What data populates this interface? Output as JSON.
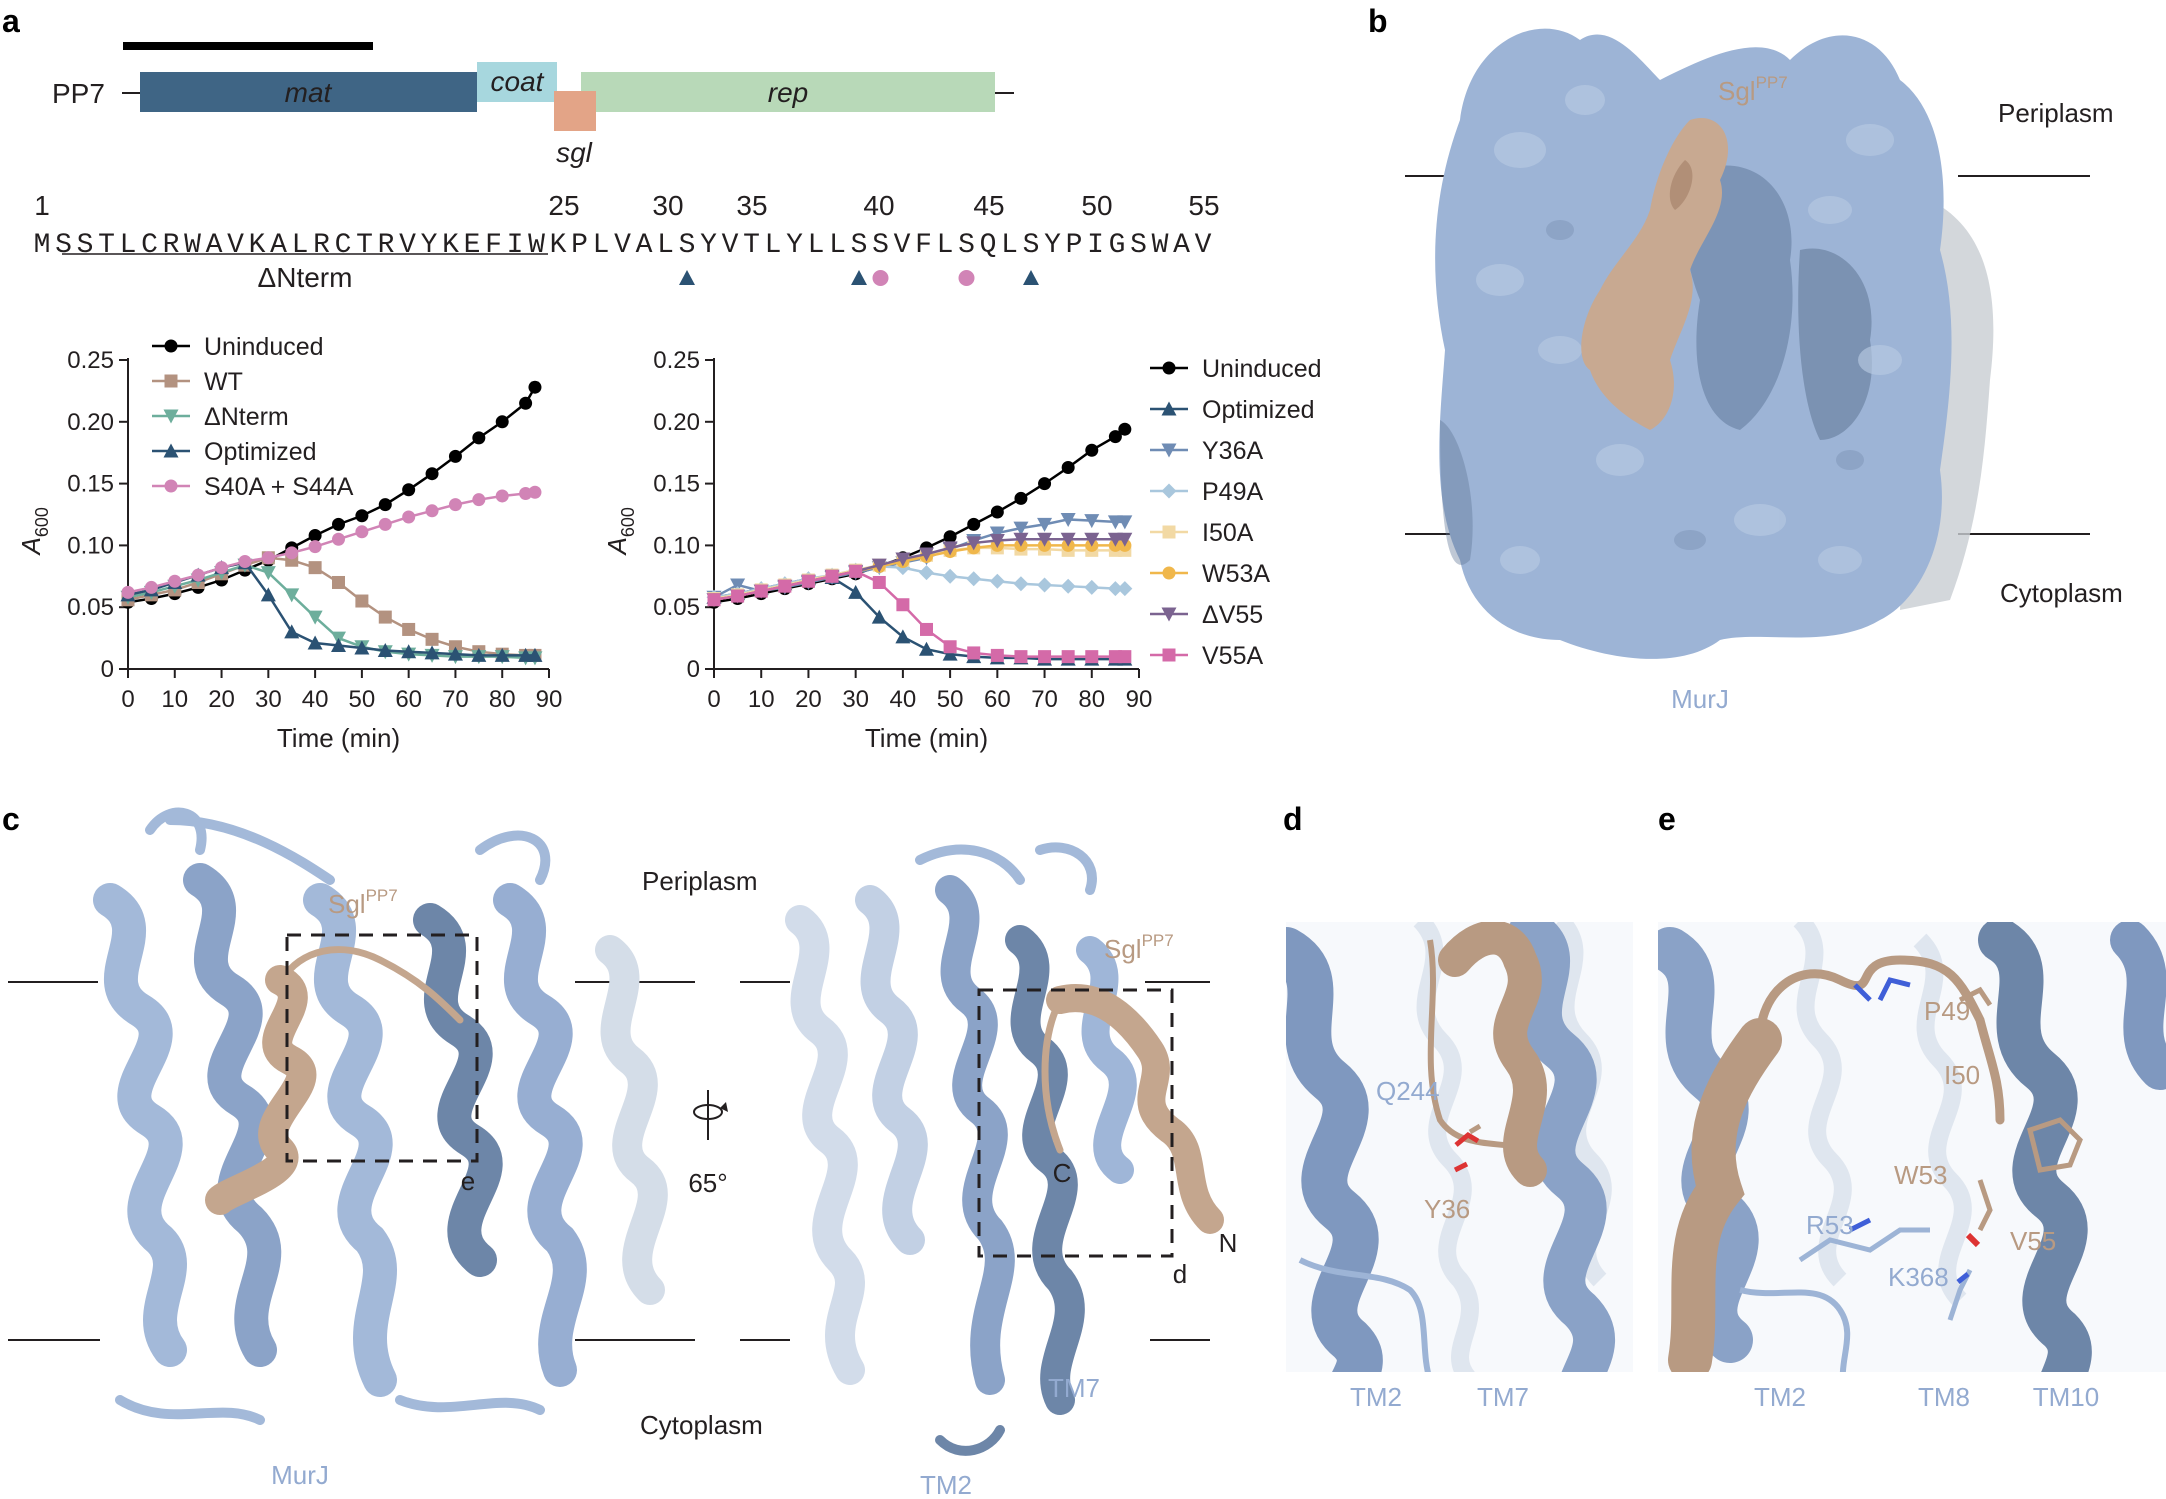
{
  "panels": {
    "a": "a",
    "b": "b",
    "c": "c",
    "d": "d",
    "e": "e"
  },
  "genome": {
    "phage": "PP7",
    "genes": [
      "mat",
      "coat",
      "rep"
    ],
    "sgl": "sgl"
  },
  "sequence": {
    "positions": [
      "1",
      "25",
      "30",
      "35",
      "40",
      "45",
      "50",
      "55"
    ],
    "residues": "MSSTLCRWAVKALRCTRVYKEFIWKPLVALSYVTLYLLSSVFLSQLSYPIGSWAV",
    "tan_residue_numbers": [
      36,
      49,
      50,
      53,
      55
    ],
    "triangle_residue_numbers": [
      31,
      39,
      47
    ],
    "circle_residue_numbers": [
      40,
      44
    ],
    "deletion_label": "ΔNterm"
  },
  "panel_b": {
    "sgl_label": "Sgl",
    "sgl_sup": "PP7",
    "periplasm": "Periplasm",
    "cytoplasm": "Cytoplasm",
    "murj": "MurJ"
  },
  "panel_c": {
    "periplasm": "Periplasm",
    "cytoplasm": "Cytoplasm",
    "murj": "MurJ",
    "sgl_label": "Sgl",
    "sgl_sup": "PP7",
    "box_e": "e",
    "box_d": "d",
    "rotation": "65°",
    "c_term": "C",
    "n_term": "N",
    "tm2": "TM2",
    "tm7": "TM7"
  },
  "panel_d": {
    "q244": "Q244",
    "y36": "Y36",
    "tm2": "TM2",
    "tm7": "TM7"
  },
  "panel_e": {
    "p49": "P49",
    "i50": "I50",
    "w53": "W53",
    "v55": "V55",
    "r53": "R53",
    "k368": "K368",
    "tm2": "TM2",
    "tm8": "TM8",
    "tm10": "TM10"
  },
  "colors": {
    "murj_blue": "#9db4d6",
    "murj_dark": "#5f7695",
    "sgl_tan": "#b89a82",
    "mat": "#3f6585",
    "coat": "#a7d7de",
    "rep": "#b8d9b8",
    "sgl_gene": "#e3a487"
  },
  "chart_data": [
    {
      "type": "line",
      "xlabel": "Time (min)",
      "ylabel": "A600",
      "ylabel_main": "A",
      "ylabel_sub": "600",
      "xlim": [
        0,
        90
      ],
      "ylim": [
        0,
        0.25
      ],
      "xticks": [
        "0",
        "10",
        "20",
        "30",
        "40",
        "50",
        "60",
        "70",
        "80",
        "90"
      ],
      "yticks": [
        "0",
        "0.05",
        "0.10",
        "0.15",
        "0.20",
        "0.25"
      ],
      "legend_position": "top-left",
      "series": [
        {
          "name": "Uninduced",
          "color": "#000000",
          "marker": "circle",
          "x": [
            0,
            5,
            10,
            15,
            20,
            25,
            30,
            35,
            40,
            45,
            50,
            55,
            60,
            65,
            70,
            75,
            80,
            85,
            87
          ],
          "y": [
            0.054,
            0.057,
            0.061,
            0.066,
            0.072,
            0.08,
            0.088,
            0.098,
            0.108,
            0.117,
            0.124,
            0.133,
            0.145,
            0.158,
            0.172,
            0.187,
            0.2,
            0.215,
            0.228
          ]
        },
        {
          "name": "WT",
          "color": "#b39280",
          "marker": "square",
          "x": [
            0,
            5,
            10,
            15,
            20,
            25,
            30,
            35,
            40,
            45,
            50,
            55,
            60,
            65,
            70,
            75,
            80,
            85,
            87
          ],
          "y": [
            0.056,
            0.06,
            0.064,
            0.07,
            0.077,
            0.084,
            0.09,
            0.088,
            0.082,
            0.07,
            0.055,
            0.042,
            0.032,
            0.024,
            0.018,
            0.014,
            0.012,
            0.011,
            0.011
          ]
        },
        {
          "name": "ΔNterm",
          "color": "#6dae9c",
          "marker": "triangle-down",
          "x": [
            0,
            5,
            10,
            15,
            20,
            25,
            30,
            35,
            40,
            45,
            50,
            55,
            60,
            65,
            70,
            75,
            80,
            85,
            87
          ],
          "y": [
            0.058,
            0.062,
            0.067,
            0.072,
            0.078,
            0.084,
            0.078,
            0.06,
            0.042,
            0.025,
            0.018,
            0.014,
            0.012,
            0.011,
            0.01,
            0.01,
            0.01,
            0.009,
            0.009
          ]
        },
        {
          "name": "Optimized",
          "color": "#2b5273",
          "marker": "triangle-up",
          "x": [
            0,
            5,
            10,
            15,
            20,
            25,
            30,
            35,
            40,
            45,
            50,
            55,
            60,
            65,
            70,
            75,
            80,
            85,
            87
          ],
          "y": [
            0.06,
            0.064,
            0.07,
            0.076,
            0.082,
            0.086,
            0.06,
            0.03,
            0.021,
            0.019,
            0.017,
            0.015,
            0.014,
            0.013,
            0.012,
            0.011,
            0.011,
            0.011,
            0.011
          ]
        },
        {
          "name": "S40A + S44A",
          "color": "#d184b6",
          "marker": "circle",
          "x": [
            0,
            5,
            10,
            15,
            20,
            25,
            30,
            35,
            40,
            45,
            50,
            55,
            60,
            65,
            70,
            75,
            80,
            85,
            87
          ],
          "y": [
            0.062,
            0.066,
            0.071,
            0.076,
            0.082,
            0.087,
            0.09,
            0.094,
            0.099,
            0.105,
            0.111,
            0.117,
            0.123,
            0.128,
            0.133,
            0.137,
            0.14,
            0.142,
            0.143
          ]
        }
      ]
    },
    {
      "type": "line",
      "xlabel": "Time (min)",
      "ylabel": "A600",
      "ylabel_main": "A",
      "ylabel_sub": "600",
      "xlim": [
        0,
        90
      ],
      "ylim": [
        0,
        0.25
      ],
      "xticks": [
        "0",
        "10",
        "20",
        "30",
        "40",
        "50",
        "60",
        "70",
        "80",
        "90"
      ],
      "yticks": [
        "0",
        "0.05",
        "0.10",
        "0.15",
        "0.20",
        "0.25"
      ],
      "legend_position": "right",
      "series": [
        {
          "name": "Uninduced",
          "color": "#000000",
          "marker": "circle",
          "x": [
            0,
            5,
            10,
            15,
            20,
            25,
            30,
            35,
            40,
            45,
            50,
            55,
            60,
            65,
            70,
            75,
            80,
            85,
            87
          ],
          "y": [
            0.054,
            0.057,
            0.061,
            0.065,
            0.069,
            0.073,
            0.077,
            0.083,
            0.09,
            0.098,
            0.107,
            0.117,
            0.127,
            0.138,
            0.15,
            0.163,
            0.177,
            0.188,
            0.194
          ]
        },
        {
          "name": "Optimized",
          "color": "#2b5273",
          "marker": "triangle-up",
          "x": [
            0,
            5,
            10,
            15,
            20,
            25,
            30,
            35,
            40,
            45,
            50,
            55,
            60,
            65,
            70,
            75,
            80,
            85,
            87
          ],
          "y": [
            0.058,
            0.061,
            0.065,
            0.069,
            0.073,
            0.074,
            0.062,
            0.042,
            0.026,
            0.016,
            0.012,
            0.01,
            0.009,
            0.009,
            0.008,
            0.008,
            0.008,
            0.008,
            0.008
          ]
        },
        {
          "name": "Y36A",
          "color": "#6f8cb4",
          "marker": "triangle-down",
          "x": [
            0,
            5,
            10,
            15,
            20,
            25,
            30,
            35,
            40,
            45,
            50,
            55,
            60,
            65,
            70,
            75,
            80,
            85,
            87
          ],
          "y": [
            0.058,
            0.068,
            0.063,
            0.066,
            0.07,
            0.074,
            0.078,
            0.082,
            0.086,
            0.09,
            0.097,
            0.104,
            0.11,
            0.114,
            0.117,
            0.121,
            0.12,
            0.119,
            0.119
          ]
        },
        {
          "name": "P49A",
          "color": "#a9c7dd",
          "marker": "diamond",
          "x": [
            0,
            5,
            10,
            15,
            20,
            25,
            30,
            35,
            40,
            45,
            50,
            55,
            60,
            65,
            70,
            75,
            80,
            85,
            87
          ],
          "y": [
            0.058,
            0.061,
            0.065,
            0.069,
            0.073,
            0.076,
            0.08,
            0.083,
            0.082,
            0.078,
            0.075,
            0.073,
            0.071,
            0.069,
            0.068,
            0.067,
            0.066,
            0.065,
            0.065
          ]
        },
        {
          "name": "I50A",
          "color": "#f2d9a4",
          "marker": "square",
          "x": [
            0,
            5,
            10,
            15,
            20,
            25,
            30,
            35,
            40,
            45,
            50,
            55,
            60,
            65,
            70,
            75,
            80,
            85,
            87
          ],
          "y": [
            0.057,
            0.06,
            0.064,
            0.068,
            0.072,
            0.076,
            0.08,
            0.084,
            0.088,
            0.092,
            0.096,
            0.098,
            0.098,
            0.097,
            0.097,
            0.096,
            0.096,
            0.096,
            0.096
          ]
        },
        {
          "name": "W53A",
          "color": "#f0b74b",
          "marker": "circle",
          "x": [
            0,
            5,
            10,
            15,
            20,
            25,
            30,
            35,
            40,
            45,
            50,
            55,
            60,
            65,
            70,
            75,
            80,
            85,
            87
          ],
          "y": [
            0.056,
            0.059,
            0.063,
            0.067,
            0.071,
            0.075,
            0.079,
            0.083,
            0.087,
            0.091,
            0.095,
            0.098,
            0.1,
            0.1,
            0.1,
            0.1,
            0.1,
            0.1,
            0.1
          ]
        },
        {
          "name": "ΔV55",
          "color": "#7b6390",
          "marker": "triangle-down",
          "x": [
            0,
            5,
            10,
            15,
            20,
            25,
            30,
            35,
            40,
            45,
            50,
            55,
            60,
            65,
            70,
            75,
            80,
            85,
            87
          ],
          "y": [
            0.056,
            0.059,
            0.063,
            0.067,
            0.071,
            0.075,
            0.079,
            0.084,
            0.089,
            0.093,
            0.098,
            0.102,
            0.104,
            0.105,
            0.105,
            0.105,
            0.105,
            0.105,
            0.105
          ]
        },
        {
          "name": "V55A",
          "color": "#d46aa8",
          "marker": "square",
          "x": [
            0,
            5,
            10,
            15,
            20,
            25,
            30,
            35,
            40,
            45,
            50,
            55,
            60,
            65,
            70,
            75,
            80,
            85,
            87
          ],
          "y": [
            0.056,
            0.059,
            0.063,
            0.067,
            0.071,
            0.075,
            0.079,
            0.07,
            0.052,
            0.032,
            0.018,
            0.013,
            0.011,
            0.01,
            0.01,
            0.01,
            0.01,
            0.01,
            0.01
          ]
        }
      ]
    }
  ]
}
